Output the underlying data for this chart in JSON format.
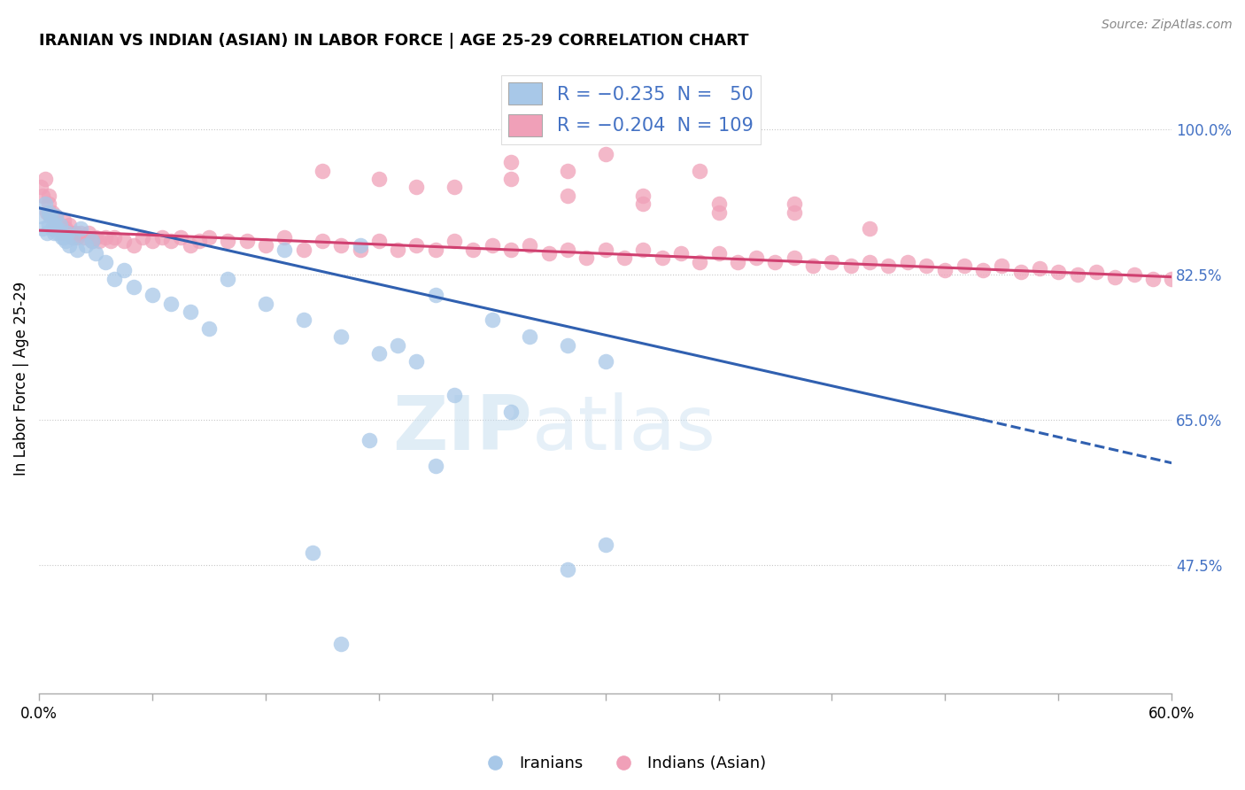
{
  "title": "IRANIAN VS INDIAN (ASIAN) IN LABOR FORCE | AGE 25-29 CORRELATION CHART",
  "source": "Source: ZipAtlas.com",
  "ylabel": "In Labor Force | Age 25-29",
  "y_ticks": [
    0.475,
    0.65,
    0.825,
    1.0
  ],
  "y_tick_labels": [
    "47.5%",
    "65.0%",
    "82.5%",
    "100.0%"
  ],
  "x_lim": [
    0.0,
    0.6
  ],
  "y_lim": [
    0.32,
    1.08
  ],
  "legend_label_iranian": "Iranians",
  "legend_label_indian": "Indians (Asian)",
  "blue_color": "#a8c8e8",
  "pink_color": "#f0a0b8",
  "trend_blue": "#3060b0",
  "trend_pink": "#d04070",
  "grid_color": "#c8c8c8",
  "text_color": "#4472c4",
  "watermark_zip": "ZIP",
  "watermark_atlas": "atlas",
  "iran_trend_x0": 0.0,
  "iran_trend_y0": 0.905,
  "iran_trend_x1": 0.5,
  "iran_trend_y1": 0.65,
  "iran_trend_dash_x1": 0.6,
  "iran_trend_dash_y1": 0.598,
  "india_trend_x0": 0.0,
  "india_trend_y0": 0.878,
  "india_trend_x1": 0.6,
  "india_trend_y1": 0.822,
  "iranians_x": [
    0.001,
    0.002,
    0.003,
    0.004,
    0.005,
    0.005,
    0.006,
    0.007,
    0.008,
    0.008,
    0.009,
    0.009,
    0.01,
    0.01,
    0.011,
    0.012,
    0.013,
    0.014,
    0.015,
    0.016,
    0.018,
    0.02,
    0.022,
    0.025,
    0.028,
    0.03,
    0.035,
    0.04,
    0.045,
    0.05,
    0.06,
    0.07,
    0.08,
    0.09,
    0.1,
    0.12,
    0.14,
    0.16,
    0.18,
    0.2,
    0.22,
    0.25,
    0.13,
    0.17,
    0.19,
    0.21,
    0.24,
    0.26,
    0.28,
    0.3
  ],
  "iranians_y": [
    0.895,
    0.88,
    0.91,
    0.875,
    0.885,
    0.9,
    0.895,
    0.88,
    0.875,
    0.885,
    0.88,
    0.895,
    0.88,
    0.875,
    0.885,
    0.87,
    0.87,
    0.865,
    0.875,
    0.86,
    0.87,
    0.855,
    0.88,
    0.86,
    0.865,
    0.85,
    0.84,
    0.82,
    0.83,
    0.81,
    0.8,
    0.79,
    0.78,
    0.76,
    0.82,
    0.79,
    0.77,
    0.75,
    0.73,
    0.72,
    0.68,
    0.66,
    0.855,
    0.86,
    0.74,
    0.8,
    0.77,
    0.75,
    0.74,
    0.72
  ],
  "iranians_outliers_x": [
    0.175,
    0.21,
    0.3,
    0.28,
    0.145,
    0.16
  ],
  "iranians_outliers_y": [
    0.625,
    0.595,
    0.5,
    0.47,
    0.49,
    0.38
  ],
  "indians_x": [
    0.001,
    0.002,
    0.003,
    0.004,
    0.005,
    0.005,
    0.006,
    0.007,
    0.008,
    0.008,
    0.009,
    0.01,
    0.011,
    0.012,
    0.013,
    0.014,
    0.015,
    0.016,
    0.017,
    0.018,
    0.019,
    0.02,
    0.022,
    0.024,
    0.026,
    0.028,
    0.03,
    0.032,
    0.035,
    0.038,
    0.04,
    0.045,
    0.05,
    0.055,
    0.06,
    0.065,
    0.07,
    0.075,
    0.08,
    0.085,
    0.09,
    0.1,
    0.11,
    0.12,
    0.13,
    0.14,
    0.15,
    0.16,
    0.17,
    0.18,
    0.19,
    0.2,
    0.21,
    0.22,
    0.23,
    0.24,
    0.25,
    0.26,
    0.27,
    0.28,
    0.29,
    0.3,
    0.31,
    0.32,
    0.33,
    0.34,
    0.35,
    0.36,
    0.37,
    0.38,
    0.39,
    0.4,
    0.41,
    0.42,
    0.43,
    0.44,
    0.45,
    0.46,
    0.47,
    0.48,
    0.49,
    0.5,
    0.51,
    0.52,
    0.53,
    0.54,
    0.55,
    0.56,
    0.57,
    0.58,
    0.59,
    0.6,
    0.25,
    0.3,
    0.35,
    0.18,
    0.22,
    0.28,
    0.32,
    0.36,
    0.4,
    0.15,
    0.2,
    0.25,
    0.28,
    0.32,
    0.36,
    0.4,
    0.44
  ],
  "indians_y": [
    0.93,
    0.92,
    0.94,
    0.9,
    0.91,
    0.92,
    0.895,
    0.9,
    0.88,
    0.895,
    0.895,
    0.88,
    0.885,
    0.875,
    0.89,
    0.88,
    0.875,
    0.885,
    0.875,
    0.87,
    0.875,
    0.87,
    0.875,
    0.87,
    0.875,
    0.865,
    0.87,
    0.865,
    0.87,
    0.865,
    0.87,
    0.865,
    0.86,
    0.87,
    0.865,
    0.87,
    0.865,
    0.87,
    0.86,
    0.865,
    0.87,
    0.865,
    0.865,
    0.86,
    0.87,
    0.855,
    0.865,
    0.86,
    0.855,
    0.865,
    0.855,
    0.86,
    0.855,
    0.865,
    0.855,
    0.86,
    0.855,
    0.86,
    0.85,
    0.855,
    0.845,
    0.855,
    0.845,
    0.855,
    0.845,
    0.85,
    0.84,
    0.85,
    0.84,
    0.845,
    0.84,
    0.845,
    0.835,
    0.84,
    0.835,
    0.84,
    0.835,
    0.84,
    0.835,
    0.83,
    0.835,
    0.83,
    0.835,
    0.828,
    0.832,
    0.828,
    0.825,
    0.828,
    0.822,
    0.825,
    0.82,
    0.82,
    0.96,
    0.97,
    0.95,
    0.94,
    0.93,
    0.95,
    0.92,
    0.91,
    0.9,
    0.95,
    0.93,
    0.94,
    0.92,
    0.91,
    0.9,
    0.91,
    0.88
  ]
}
